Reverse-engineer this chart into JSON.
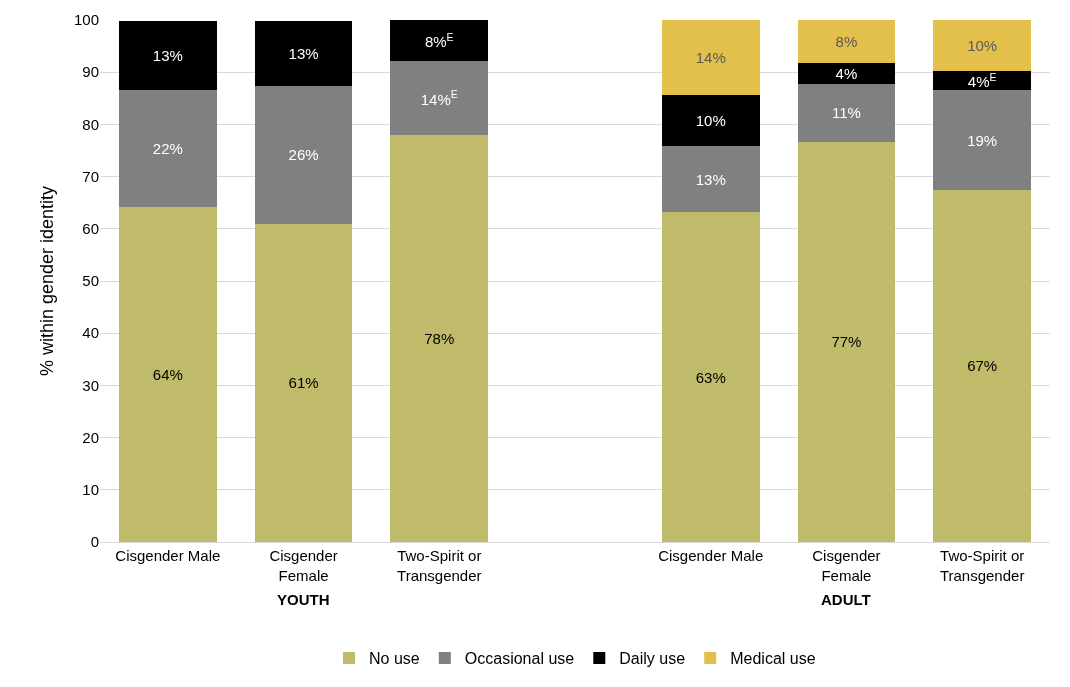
{
  "chart_data": {
    "type": "bar",
    "stacked": true,
    "ylabel": "% within gender identity",
    "categories": [
      "Cisgender Male",
      "Cisgender Female",
      "Two-Spirit or Transgender",
      null,
      "Cisgender Male",
      "Cisgender Female",
      "Two-Spirit or Transgender"
    ],
    "series": [
      {
        "name": "No use",
        "color": "#bfbb6b",
        "values": [
          64.2,
          61.0,
          77.9,
          null,
          63.2,
          76.7,
          67.5
        ],
        "value_labels": [
          "64%",
          "61%",
          "78%",
          null,
          "63%",
          "77%",
          "67%"
        ]
      },
      {
        "name": "Occasional use",
        "color": "#808080",
        "values": [
          22.4,
          26.3,
          14.3,
          null,
          12.6,
          11.0,
          19.0
        ],
        "value_labels": [
          "22%",
          "26%",
          "14%$^{E}$",
          null,
          "13%",
          "11%",
          "19%"
        ]
      },
      {
        "name": "Daily use",
        "color": "#000000",
        "values": [
          13.3,
          12.6,
          7.8,
          null,
          9.8,
          4.0,
          3.8
        ],
        "value_labels": [
          "13%",
          "13%",
          "8%$^{E}$",
          null,
          "10%",
          "4%",
          "4%$^{E}$"
        ]
      },
      {
        "name": "Medical use",
        "color": "#e3c04b",
        "values": [
          null,
          null,
          null,
          null,
          14.4,
          8.3,
          9.7
        ],
        "value_labels": [
          null,
          null,
          null,
          null,
          "14%",
          "8%",
          "10%"
        ]
      }
    ],
    "annotations": [
      "YOUTH",
      "ADULT"
    ],
    "ylim": [
      0,
      100
    ],
    "yticks": [
      0,
      10,
      20,
      30,
      40,
      50,
      60,
      70,
      80,
      90,
      100
    ],
    "grid": "y",
    "legend": "bottom"
  }
}
